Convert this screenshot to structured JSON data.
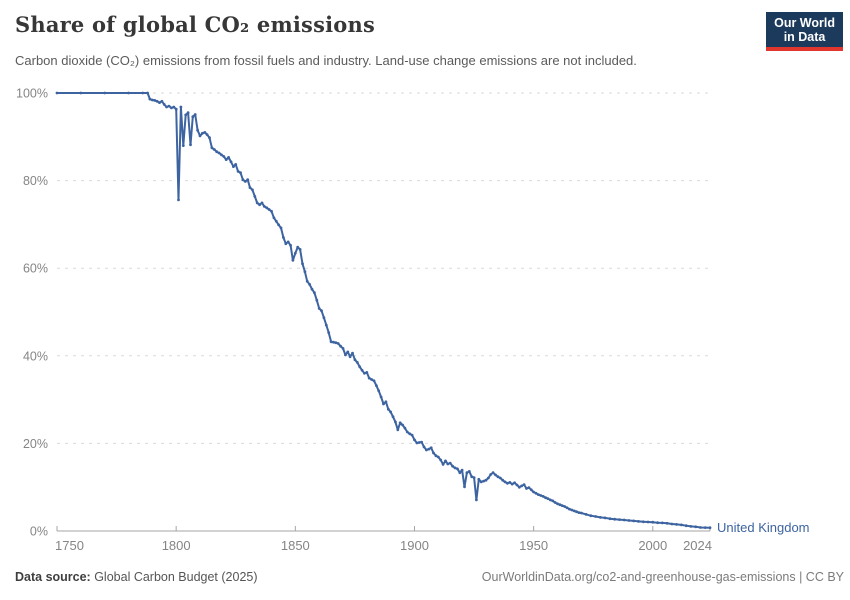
{
  "header": {
    "title": "Share of global CO₂ emissions",
    "subtitle": "Carbon dioxide (CO₂) emissions from fossil fuels and industry. Land-use change emissions are not included.",
    "logo_line1": "Our World",
    "logo_line2": "in Data"
  },
  "footer": {
    "datasource_label": "Data source:",
    "datasource_value": " Global Carbon Budget (2025)",
    "right_text": "OurWorldinData.org/co2-and-greenhouse-gas-emissions | CC BY"
  },
  "colors": {
    "line": "#3d64a0",
    "entity_label": "#3d64a0",
    "logo_bg": "#1b3a5c",
    "logo_stripe": "#e0362e",
    "grid": "#d9d9d9",
    "axis": "#a5a5a5",
    "tick_text": "#858585"
  },
  "chart_data": {
    "type": "line",
    "title": "Share of global CO₂ emissions",
    "xlabel": "",
    "ylabel": "",
    "xlim": [
      1750,
      2024
    ],
    "ylim": [
      0,
      100
    ],
    "x_ticks": [
      1750,
      1800,
      1850,
      1900,
      1950,
      2000,
      2024
    ],
    "y_ticks": [
      {
        "label": "0%",
        "value": 0
      },
      {
        "label": "20%",
        "value": 20
      },
      {
        "label": "40%",
        "value": 40
      },
      {
        "label": "60%",
        "value": 60
      },
      {
        "label": "80%",
        "value": 80
      },
      {
        "label": "100%",
        "value": 100
      }
    ],
    "grid": "dashed-horizontal",
    "legend_position": "line-end-label",
    "series": [
      {
        "name": "United Kingdom",
        "points": [
          [
            1750,
            100
          ],
          [
            1760,
            100
          ],
          [
            1770,
            100
          ],
          [
            1780,
            100
          ],
          [
            1786,
            100
          ],
          [
            1788,
            100
          ],
          [
            1789,
            98.6
          ],
          [
            1790,
            98.4
          ],
          [
            1791,
            98.3
          ],
          [
            1792,
            98.1
          ],
          [
            1793,
            97.8
          ],
          [
            1794,
            98.1
          ],
          [
            1795,
            97.4
          ],
          [
            1796,
            96.8
          ],
          [
            1797,
            97.0
          ],
          [
            1798,
            96.6
          ],
          [
            1799,
            96.8
          ],
          [
            1800,
            96.3
          ],
          [
            1801,
            75.6
          ],
          [
            1802,
            96.8
          ],
          [
            1803,
            88.0
          ],
          [
            1804,
            95.0
          ],
          [
            1805,
            95.5
          ],
          [
            1806,
            88.2
          ],
          [
            1807,
            94.6
          ],
          [
            1808,
            95.1
          ],
          [
            1809,
            91.5
          ],
          [
            1810,
            90.2
          ],
          [
            1811,
            90.8
          ],
          [
            1812,
            91.0
          ],
          [
            1813,
            90.5
          ],
          [
            1814,
            89.8
          ],
          [
            1815,
            87.5
          ],
          [
            1816,
            87.1
          ],
          [
            1817,
            86.6
          ],
          [
            1818,
            86.3
          ],
          [
            1819,
            85.9
          ],
          [
            1820,
            85.5
          ],
          [
            1821,
            84.8
          ],
          [
            1822,
            85.3
          ],
          [
            1823,
            84.3
          ],
          [
            1824,
            83.2
          ],
          [
            1825,
            83.7
          ],
          [
            1826,
            82.1
          ],
          [
            1827,
            81.8
          ],
          [
            1828,
            80.2
          ],
          [
            1829,
            79.8
          ],
          [
            1830,
            80.2
          ],
          [
            1831,
            78.4
          ],
          [
            1832,
            77.9
          ],
          [
            1833,
            76.4
          ],
          [
            1834,
            74.9
          ],
          [
            1835,
            74.5
          ],
          [
            1836,
            74.9
          ],
          [
            1837,
            74.1
          ],
          [
            1838,
            73.8
          ],
          [
            1839,
            73.4
          ],
          [
            1840,
            73.0
          ],
          [
            1841,
            71.5
          ],
          [
            1842,
            70.7
          ],
          [
            1843,
            69.9
          ],
          [
            1844,
            69.2
          ],
          [
            1845,
            67.0
          ],
          [
            1846,
            65.6
          ],
          [
            1847,
            66.0
          ],
          [
            1848,
            65.2
          ],
          [
            1849,
            61.8
          ],
          [
            1850,
            63.4
          ],
          [
            1851,
            64.8
          ],
          [
            1852,
            64.3
          ],
          [
            1853,
            61.0
          ],
          [
            1854,
            59.2
          ],
          [
            1855,
            57.0
          ],
          [
            1856,
            56.3
          ],
          [
            1857,
            55.2
          ],
          [
            1858,
            54.4
          ],
          [
            1859,
            52.7
          ],
          [
            1860,
            50.8
          ],
          [
            1861,
            50.3
          ],
          [
            1862,
            48.7
          ],
          [
            1863,
            47.0
          ],
          [
            1864,
            45.3
          ],
          [
            1865,
            43.2
          ],
          [
            1866,
            43.1
          ],
          [
            1867,
            43.0
          ],
          [
            1868,
            42.8
          ],
          [
            1869,
            42.2
          ],
          [
            1870,
            41.7
          ],
          [
            1871,
            40.2
          ],
          [
            1872,
            40.9
          ],
          [
            1873,
            39.8
          ],
          [
            1874,
            40.6
          ],
          [
            1875,
            39.1
          ],
          [
            1876,
            38.5
          ],
          [
            1877,
            37.5
          ],
          [
            1878,
            36.7
          ],
          [
            1879,
            36.0
          ],
          [
            1880,
            36.2
          ],
          [
            1881,
            34.9
          ],
          [
            1882,
            34.6
          ],
          [
            1883,
            34.3
          ],
          [
            1884,
            33.2
          ],
          [
            1885,
            32.0
          ],
          [
            1886,
            30.6
          ],
          [
            1887,
            29.0
          ],
          [
            1888,
            29.5
          ],
          [
            1889,
            27.8
          ],
          [
            1890,
            27.2
          ],
          [
            1891,
            26.1
          ],
          [
            1892,
            24.9
          ],
          [
            1893,
            23.1
          ],
          [
            1894,
            24.7
          ],
          [
            1895,
            24.2
          ],
          [
            1896,
            23.5
          ],
          [
            1897,
            22.6
          ],
          [
            1898,
            22.2
          ],
          [
            1899,
            21.9
          ],
          [
            1900,
            20.8
          ],
          [
            1901,
            20.1
          ],
          [
            1902,
            20.2
          ],
          [
            1903,
            20.3
          ],
          [
            1904,
            19.2
          ],
          [
            1905,
            18.5
          ],
          [
            1906,
            18.7
          ],
          [
            1907,
            19.0
          ],
          [
            1908,
            17.8
          ],
          [
            1909,
            17.2
          ],
          [
            1910,
            16.9
          ],
          [
            1911,
            16.2
          ],
          [
            1912,
            15.2
          ],
          [
            1913,
            16.0
          ],
          [
            1914,
            15.3
          ],
          [
            1915,
            15.5
          ],
          [
            1916,
            14.8
          ],
          [
            1917,
            14.4
          ],
          [
            1918,
            14.2
          ],
          [
            1919,
            13.3
          ],
          [
            1920,
            13.9
          ],
          [
            1921,
            10.1
          ],
          [
            1922,
            13.3
          ],
          [
            1923,
            13.6
          ],
          [
            1924,
            12.4
          ],
          [
            1925,
            12.2
          ],
          [
            1926,
            7.1
          ],
          [
            1927,
            11.8
          ],
          [
            1928,
            11.2
          ],
          [
            1929,
            11.4
          ],
          [
            1930,
            11.6
          ],
          [
            1931,
            12.1
          ],
          [
            1932,
            12.9
          ],
          [
            1933,
            13.3
          ],
          [
            1934,
            12.8
          ],
          [
            1935,
            12.4
          ],
          [
            1936,
            12.1
          ],
          [
            1937,
            11.6
          ],
          [
            1938,
            11.2
          ],
          [
            1939,
            10.9
          ],
          [
            1940,
            11.1
          ],
          [
            1941,
            10.7
          ],
          [
            1942,
            11.0
          ],
          [
            1943,
            10.5
          ],
          [
            1944,
            10.0
          ],
          [
            1945,
            10.3
          ],
          [
            1946,
            10.6
          ],
          [
            1947,
            9.7
          ],
          [
            1948,
            9.9
          ],
          [
            1949,
            9.4
          ],
          [
            1950,
            8.9
          ],
          [
            1951,
            8.6
          ],
          [
            1952,
            8.3
          ],
          [
            1953,
            8.1
          ],
          [
            1954,
            7.9
          ],
          [
            1955,
            7.6
          ],
          [
            1956,
            7.4
          ],
          [
            1957,
            7.1
          ],
          [
            1958,
            6.9
          ],
          [
            1959,
            6.5
          ],
          [
            1960,
            6.2
          ],
          [
            1961,
            6.0
          ],
          [
            1962,
            5.8
          ],
          [
            1963,
            5.6
          ],
          [
            1964,
            5.3
          ],
          [
            1965,
            5.0
          ],
          [
            1966,
            4.8
          ],
          [
            1967,
            4.6
          ],
          [
            1968,
            4.4
          ],
          [
            1969,
            4.2
          ],
          [
            1970,
            4.1
          ],
          [
            1972,
            3.8
          ],
          [
            1974,
            3.5
          ],
          [
            1976,
            3.3
          ],
          [
            1978,
            3.1
          ],
          [
            1980,
            3.0
          ],
          [
            1982,
            2.8
          ],
          [
            1984,
            2.7
          ],
          [
            1986,
            2.6
          ],
          [
            1988,
            2.5
          ],
          [
            1990,
            2.4
          ],
          [
            1992,
            2.3
          ],
          [
            1994,
            2.2
          ],
          [
            1996,
            2.1
          ],
          [
            1998,
            2.05
          ],
          [
            2000,
            2.0
          ],
          [
            2002,
            1.9
          ],
          [
            2004,
            1.85
          ],
          [
            2006,
            1.75
          ],
          [
            2008,
            1.6
          ],
          [
            2010,
            1.5
          ],
          [
            2012,
            1.4
          ],
          [
            2014,
            1.2
          ],
          [
            2016,
            1.05
          ],
          [
            2018,
            0.95
          ],
          [
            2020,
            0.8
          ],
          [
            2022,
            0.78
          ],
          [
            2024,
            0.72
          ]
        ]
      }
    ]
  }
}
